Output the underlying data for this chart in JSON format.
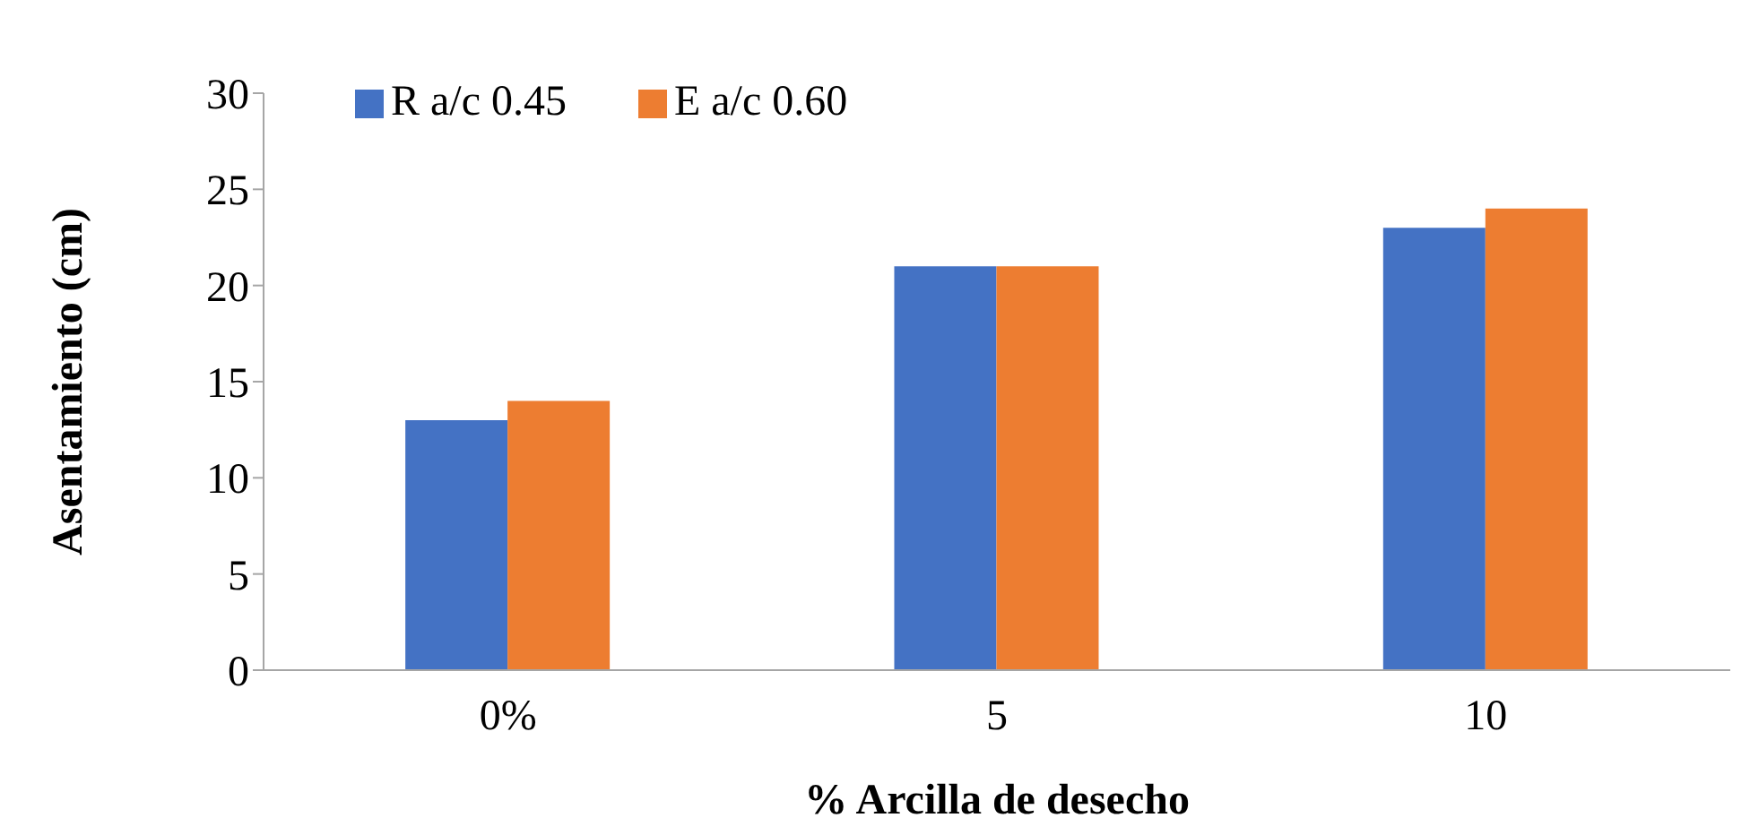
{
  "chart_data": {
    "type": "bar",
    "xlabel": "% Arcilla de desecho",
    "ylabel": "Asentamiento (cm)",
    "categories": [
      "0%",
      "5",
      "10"
    ],
    "series": [
      {
        "name": "R a/c 0.45",
        "color": "#4472c4",
        "values": [
          13,
          21,
          23
        ]
      },
      {
        "name": "E a/c 0.60",
        "color": "#ed7d31",
        "values": [
          14,
          21,
          24
        ]
      }
    ],
    "ylim": [
      0,
      30
    ],
    "yticks": [
      0,
      5,
      10,
      15,
      20,
      25,
      30
    ],
    "grid": false,
    "legend": "top left"
  }
}
